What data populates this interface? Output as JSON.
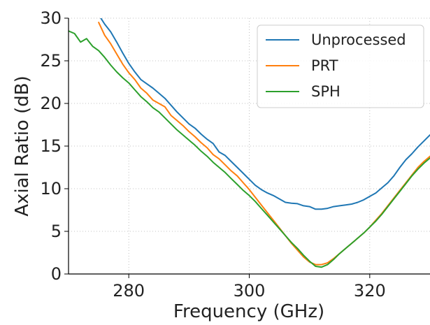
{
  "chart_data": {
    "type": "line",
    "title": "",
    "xlabel": "Frequency (GHz)",
    "ylabel": "Axial Ratio (dB)",
    "xlim": [
      270,
      330
    ],
    "ylim": [
      0,
      30
    ],
    "xticks": [
      280,
      300,
      320
    ],
    "yticks": [
      0,
      5,
      10,
      15,
      20,
      25,
      30
    ],
    "grid": true,
    "legend_placement": "top-right",
    "series": [
      {
        "name": "Unprocessed",
        "color": "#1f77b4",
        "x": [
          275,
          276,
          277,
          278,
          279,
          280,
          281,
          282,
          283,
          284,
          285,
          286,
          287,
          288,
          289,
          290,
          291,
          292,
          293,
          294,
          295,
          296,
          297,
          298,
          299,
          300,
          301,
          302,
          303,
          304,
          305,
          306,
          307,
          308,
          309,
          310,
          311,
          312,
          313,
          314,
          315,
          316,
          317,
          318,
          319,
          320,
          321,
          322,
          323,
          324,
          325,
          326,
          327,
          328,
          329,
          330
        ],
        "y": [
          30.4,
          29.3,
          28.4,
          27.2,
          25.9,
          24.7,
          23.7,
          22.8,
          22.3,
          21.8,
          21.2,
          20.6,
          19.8,
          19.0,
          18.3,
          17.6,
          17.1,
          16.4,
          15.8,
          15.3,
          14.3,
          13.9,
          13.2,
          12.5,
          11.8,
          11.1,
          10.4,
          9.9,
          9.5,
          9.2,
          8.8,
          8.4,
          8.3,
          8.25,
          8.0,
          7.9,
          7.6,
          7.6,
          7.7,
          7.9,
          8.0,
          8.1,
          8.2,
          8.4,
          8.7,
          9.1,
          9.5,
          10.1,
          10.7,
          11.5,
          12.5,
          13.4,
          14.1,
          14.9,
          15.6,
          16.3
        ]
      },
      {
        "name": "PRT",
        "color": "#ff7f0e",
        "x": [
          275,
          276,
          277,
          278,
          279,
          280,
          281,
          282,
          283,
          284,
          285,
          286,
          287,
          288,
          289,
          290,
          291,
          292,
          293,
          294,
          295,
          296,
          297,
          298,
          299,
          300,
          301,
          302,
          303,
          304,
          305,
          306,
          307,
          308,
          309,
          310,
          311,
          312,
          313,
          314,
          315,
          316,
          317,
          318,
          319,
          320,
          321,
          322,
          323,
          324,
          325,
          326,
          327,
          328,
          329,
          330
        ],
        "y": [
          29.5,
          28.0,
          27.0,
          25.8,
          24.6,
          23.6,
          22.8,
          21.8,
          21.2,
          20.4,
          20.0,
          19.6,
          18.6,
          18.0,
          17.4,
          16.7,
          16.1,
          15.4,
          14.8,
          14.0,
          13.5,
          12.8,
          12.1,
          11.5,
          10.7,
          9.9,
          9.0,
          8.1,
          7.2,
          6.3,
          5.4,
          4.5,
          3.6,
          2.8,
          2.0,
          1.4,
          1.1,
          1.1,
          1.3,
          1.8,
          2.4,
          3.0,
          3.6,
          4.2,
          4.8,
          5.5,
          6.3,
          7.1,
          8.0,
          8.9,
          9.8,
          10.7,
          11.6,
          12.5,
          13.2,
          13.8
        ]
      },
      {
        "name": "SPH",
        "color": "#2ca02c",
        "x": [
          270,
          271,
          272,
          273,
          274,
          275,
          276,
          277,
          278,
          279,
          280,
          281,
          282,
          283,
          284,
          285,
          286,
          287,
          288,
          289,
          290,
          291,
          292,
          293,
          294,
          295,
          296,
          297,
          298,
          299,
          300,
          301,
          302,
          303,
          304,
          305,
          306,
          307,
          308,
          309,
          310,
          311,
          312,
          313,
          314,
          315,
          316,
          317,
          318,
          319,
          320,
          321,
          322,
          323,
          324,
          325,
          326,
          327,
          328,
          329,
          330
        ],
        "y": [
          28.5,
          28.2,
          27.2,
          27.6,
          26.7,
          26.2,
          25.4,
          24.5,
          23.7,
          23.0,
          22.4,
          21.6,
          20.8,
          20.2,
          19.5,
          19.0,
          18.3,
          17.6,
          16.9,
          16.3,
          15.7,
          15.1,
          14.4,
          13.8,
          13.1,
          12.5,
          11.9,
          11.2,
          10.5,
          9.8,
          9.2,
          8.5,
          7.7,
          6.9,
          6.1,
          5.3,
          4.5,
          3.7,
          3.0,
          2.2,
          1.5,
          0.9,
          0.8,
          1.1,
          1.7,
          2.4,
          3.0,
          3.6,
          4.2,
          4.8,
          5.5,
          6.2,
          7.0,
          7.9,
          8.8,
          9.7,
          10.6,
          11.5,
          12.3,
          13.0,
          13.6
        ]
      }
    ]
  }
}
